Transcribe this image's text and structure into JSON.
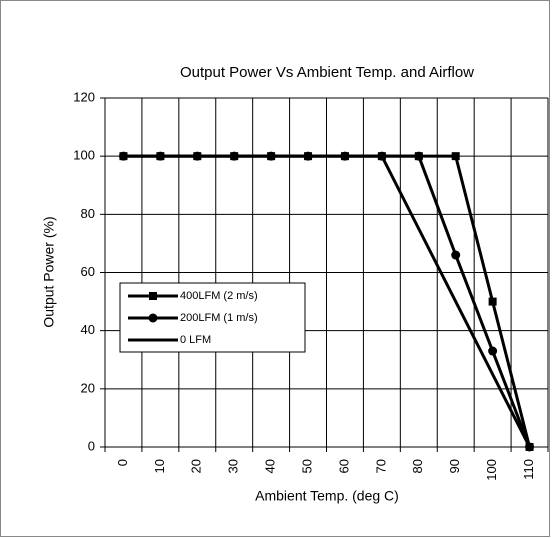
{
  "chart_data": {
    "type": "line",
    "title": "Output Power Vs Ambient Temp. and Airflow",
    "x_label": "Ambient Temp. (deg C)",
    "y_label": "Output Power (%)",
    "categories": [
      "0",
      "10",
      "20",
      "30",
      "40",
      "50",
      "60",
      "70",
      "80",
      "90",
      "100",
      "110"
    ],
    "series": [
      {
        "name": "400LFM (2 m/s)",
        "color": "#000000",
        "marker": "square",
        "values": [
          100,
          100,
          100,
          100,
          100,
          100,
          100,
          100,
          100,
          100,
          50,
          0
        ]
      },
      {
        "name": "200LFM (1 m/s)",
        "color": "#000000",
        "marker": "circle",
        "values": [
          100,
          100,
          100,
          100,
          100,
          100,
          100,
          100,
          100,
          66,
          33,
          0
        ]
      },
      {
        "name": "0 LFM",
        "color": "#000000",
        "marker": "none",
        "values": [
          100,
          100,
          100,
          100,
          100,
          100,
          100,
          100,
          75,
          50,
          25,
          0
        ]
      }
    ],
    "ylim": [
      0,
      120
    ],
    "yticks": [
      0,
      20,
      40,
      60,
      80,
      100,
      120
    ],
    "grid": true
  }
}
